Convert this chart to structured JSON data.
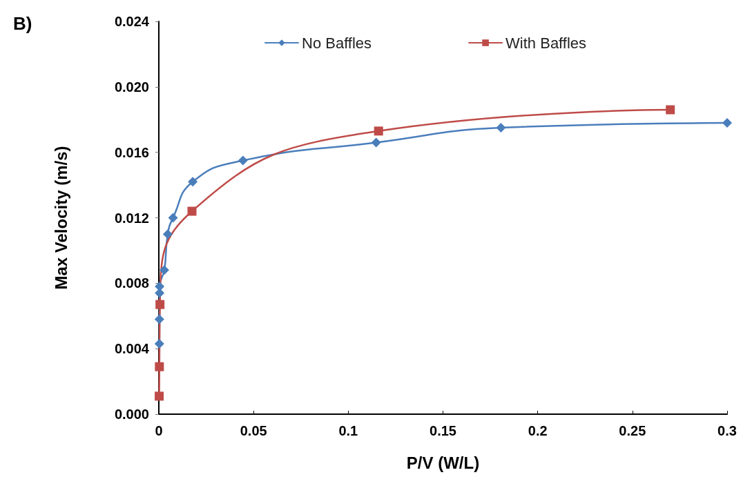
{
  "chart_data": {
    "type": "line",
    "title": "B)",
    "xlabel": "P/V (W/L)",
    "ylabel": "Max Velocity (m/s)",
    "xlim": [
      0,
      0.3
    ],
    "xticks": [
      0,
      0.05,
      0.1,
      0.15,
      0.2,
      0.25,
      0.3
    ],
    "ylim": [
      0,
      0.024
    ],
    "yticks": [
      {
        "value": 0,
        "label": "0.000"
      },
      {
        "value": 0.004,
        "label": "0.004"
      },
      {
        "value": 0.008,
        "label": "0.008"
      },
      {
        "value": 0.012,
        "label": "0.012"
      },
      {
        "value": 0.016,
        "label": "0.016"
      },
      {
        "value": 0.02,
        "label": "0.020"
      },
      {
        "value": 0.024,
        "label": "0.024"
      }
    ],
    "grid": false,
    "legend": "top",
    "line_style": "solid",
    "series": [
      {
        "name": "No Baffles",
        "color": "#4a7ebb",
        "marker": "diamond",
        "x": [
          0.0003,
          0.0003,
          0.0004,
          0.0004,
          0.0029,
          0.0047,
          0.0075,
          0.0179,
          0.0444,
          0.1147,
          0.1806,
          0.3
        ],
        "values": [
          0.0043,
          0.0058,
          0.0074,
          0.0078,
          0.0088,
          0.011,
          0.012,
          0.0142,
          0.0155,
          0.0166,
          0.0175,
          0.0178
        ]
      },
      {
        "name": "With Baffles",
        "color": "#be4b48",
        "marker": "square",
        "x": [
          0.0002,
          0.0003,
          0.0006,
          0.0175,
          0.116,
          0.27
        ],
        "values": [
          0.0011,
          0.0029,
          0.0067,
          0.0124,
          0.0173,
          0.0186
        ]
      }
    ]
  }
}
